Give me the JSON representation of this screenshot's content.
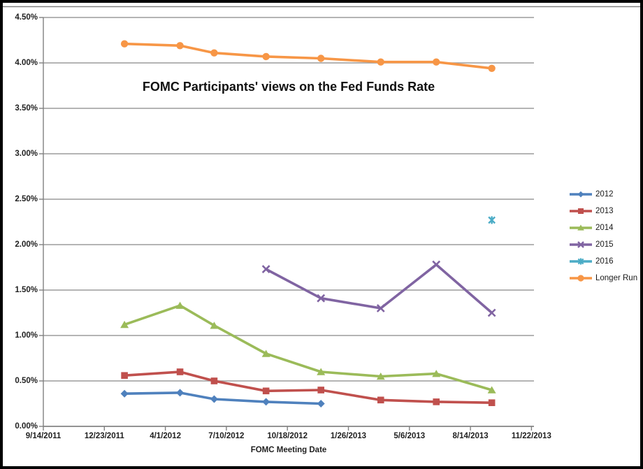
{
  "chart_data": {
    "type": "line",
    "title": "FOMC Participants' views on the Fed Funds Rate",
    "xlabel": "FOMC Meeting Date",
    "ylabel": "",
    "y_axis": {
      "min": 0,
      "max": 4.5,
      "step": 0.5,
      "tick_labels": [
        "0.00%",
        "0.50%",
        "1.00%",
        "1.50%",
        "2.00%",
        "2.50%",
        "3.00%",
        "3.50%",
        "4.00%",
        "4.50%"
      ]
    },
    "x_axis": {
      "tick_labels": [
        "9/14/2011",
        "12/23/2011",
        "4/1/2012",
        "7/10/2012",
        "10/18/2012",
        "1/26/2013",
        "5/6/2013",
        "8/14/2013",
        "11/22/2013"
      ],
      "tick_dates": [
        "9/14/2011",
        "12/23/2011",
        "4/1/2012",
        "7/10/2012",
        "10/18/2012",
        "1/26/2013",
        "5/6/2013",
        "8/14/2013",
        "11/22/2013"
      ]
    },
    "x_dates": [
      "1/25/2012",
      "4/25/2012",
      "6/20/2012",
      "9/13/2012",
      "12/12/2012",
      "3/20/2013",
      "6/19/2013",
      "9/18/2013"
    ],
    "series": [
      {
        "name": "2012",
        "color": "#4F81BD",
        "marker": "diamond",
        "values": [
          0.36,
          0.37,
          0.3,
          0.27,
          0.25,
          null,
          null,
          null
        ]
      },
      {
        "name": "2013",
        "color": "#C0504D",
        "marker": "square",
        "values": [
          0.56,
          0.6,
          0.5,
          0.39,
          0.4,
          0.29,
          0.27,
          0.26
        ]
      },
      {
        "name": "2014",
        "color": "#9BBB59",
        "marker": "triangle",
        "values": [
          1.12,
          1.33,
          1.11,
          0.8,
          0.6,
          0.55,
          0.58,
          0.4
        ]
      },
      {
        "name": "2015",
        "color": "#8064A2",
        "marker": "x",
        "values": [
          null,
          null,
          null,
          1.73,
          1.41,
          1.3,
          1.78,
          1.25
        ]
      },
      {
        "name": "2016",
        "color": "#4BACC6",
        "marker": "star",
        "values": [
          null,
          null,
          null,
          null,
          null,
          null,
          null,
          2.27
        ]
      },
      {
        "name": "Longer Run",
        "color": "#F79646",
        "marker": "circle",
        "values": [
          4.21,
          4.19,
          4.11,
          4.07,
          4.05,
          4.01,
          4.01,
          3.94
        ]
      }
    ],
    "legend_position": "right",
    "grid": "horizontal",
    "gridline_color": "#9C9C9C",
    "axis_color": "#808080",
    "text_color": "#1f1f1f",
    "background_color": "#FFFFFF",
    "border_color": "#000000"
  }
}
